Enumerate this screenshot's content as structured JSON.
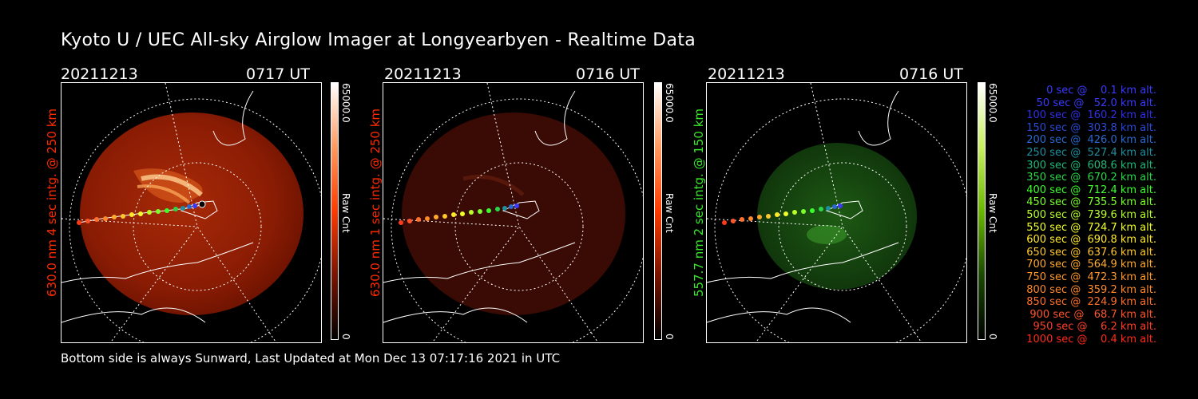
{
  "title": "Kyoto U / UEC All-sky Airglow Imager at Longyearbyen - Realtime Data",
  "panels": [
    {
      "date": "20211213",
      "time": "0717 UT",
      "ylabel": "630.0 nm  4 sec intg. @ 250 km",
      "color": "#ff2a00",
      "cbar_max": "65000.0",
      "cbar_min": "0",
      "cbar_unit": "Raw Cnt"
    },
    {
      "date": "20211213",
      "time": "0716 UT",
      "ylabel": "630.0 nm  1 sec intg. @ 250 km",
      "color": "#ff2a00",
      "cbar_max": "65000.0",
      "cbar_min": "0",
      "cbar_unit": "Raw Cnt"
    },
    {
      "date": "20211213",
      "time": "0716 UT",
      "ylabel": "557.7 nm  2 sec intg. @ 150 km",
      "color": "#38e82c",
      "cbar_max": "65000.0",
      "cbar_min": "0",
      "cbar_unit": "Raw Cnt"
    }
  ],
  "legend": [
    {
      "text": "0 sec @    0.1 km alt.",
      "color": "#3a3aff"
    },
    {
      "text": "50 sec @   52.0 km alt.",
      "color": "#3a3aff"
    },
    {
      "text": "100 sec @  160.2 km alt.",
      "color": "#2f2fe8"
    },
    {
      "text": "150 sec @  303.8 km alt.",
      "color": "#2a4ad8"
    },
    {
      "text": "200 sec @  426.0 km alt.",
      "color": "#2a6ad0"
    },
    {
      "text": "250 sec @  527.4 km alt.",
      "color": "#1f8f9f"
    },
    {
      "text": "300 sec @  608.6 km alt.",
      "color": "#1fb87a"
    },
    {
      "text": "350 sec @  670.2 km alt.",
      "color": "#28d84a"
    },
    {
      "text": "400 sec @  712.4 km alt.",
      "color": "#3aff2a"
    },
    {
      "text": "450 sec @  735.5 km alt.",
      "color": "#7aff2a"
    },
    {
      "text": "500 sec @  739.6 km alt.",
      "color": "#b8ff2a"
    },
    {
      "text": "550 sec @  724.7 km alt.",
      "color": "#f0ff2a"
    },
    {
      "text": "600 sec @  690.8 km alt.",
      "color": "#ffea2a"
    },
    {
      "text": "650 sec @  637.6 km alt.",
      "color": "#ffc82a"
    },
    {
      "text": "700 sec @  564.9 km alt.",
      "color": "#ffaa2a"
    },
    {
      "text": "750 sec @  472.3 km alt.",
      "color": "#ff9a2a"
    },
    {
      "text": "800 sec @  359.2 km alt.",
      "color": "#ff8a2a"
    },
    {
      "text": "850 sec @  224.9 km alt.",
      "color": "#ff702a"
    },
    {
      "text": "900 sec @   68.7 km alt.",
      "color": "#ff552a"
    },
    {
      "text": "950 sec @    6.2 km alt.",
      "color": "#ff402a"
    },
    {
      "text": "1000 sec @    0.4 km alt.",
      "color": "#ff2a1a"
    }
  ],
  "footer": "Bottom side is always Sunward, Last Updated at Mon Dec 13 07:17:16 2021 in UTC"
}
